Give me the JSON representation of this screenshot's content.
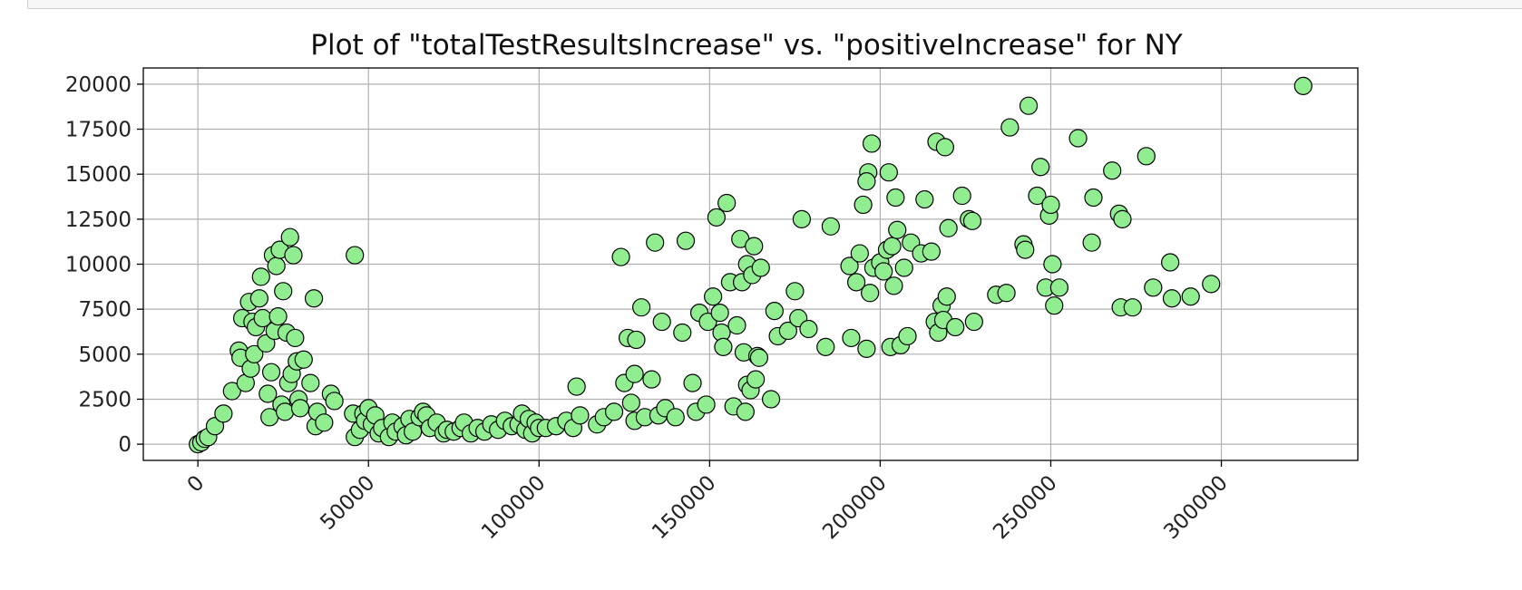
{
  "chart_data": {
    "type": "scatter",
    "title": "Plot of \"totalTestResultsIncrease\" vs. \"positiveIncrease\" for NY",
    "xlabel": "",
    "ylabel": "",
    "xlim": [
      -16000,
      340000
    ],
    "ylim": [
      -900,
      20900
    ],
    "xticks": [
      0,
      50000,
      100000,
      150000,
      200000,
      250000,
      300000
    ],
    "yticks": [
      0,
      2500,
      5000,
      7500,
      10000,
      12500,
      15000,
      17500,
      20000
    ],
    "grid": true,
    "marker_color": "#90ee90",
    "marker_edge_color": "#000000",
    "series": [
      {
        "points": [
          [
            0,
            0
          ],
          [
            1000,
            100
          ],
          [
            2000,
            300
          ],
          [
            3000,
            400
          ],
          [
            5000,
            1000
          ],
          [
            7500,
            1700
          ],
          [
            10000,
            2950
          ],
          [
            12000,
            5200
          ],
          [
            12500,
            4800
          ],
          [
            13000,
            7000
          ],
          [
            14000,
            3400
          ],
          [
            15000,
            7900
          ],
          [
            15500,
            4200
          ],
          [
            16000,
            6800
          ],
          [
            16500,
            5000
          ],
          [
            17000,
            6500
          ],
          [
            18000,
            8100
          ],
          [
            18500,
            9300
          ],
          [
            19000,
            7000
          ],
          [
            20000,
            5600
          ],
          [
            20500,
            2800
          ],
          [
            21000,
            1500
          ],
          [
            21500,
            4000
          ],
          [
            22000,
            10500
          ],
          [
            22500,
            6300
          ],
          [
            23000,
            9900
          ],
          [
            23500,
            7100
          ],
          [
            24000,
            10800
          ],
          [
            24500,
            2200
          ],
          [
            25000,
            8500
          ],
          [
            25500,
            1800
          ],
          [
            26000,
            6200
          ],
          [
            26500,
            3400
          ],
          [
            27000,
            11500
          ],
          [
            27500,
            3900
          ],
          [
            28000,
            10500
          ],
          [
            28500,
            5900
          ],
          [
            29000,
            4600
          ],
          [
            29500,
            2500
          ],
          [
            30000,
            2000
          ],
          [
            31000,
            4700
          ],
          [
            33000,
            3400
          ],
          [
            34000,
            8100
          ],
          [
            34500,
            1000
          ],
          [
            35000,
            1800
          ],
          [
            37000,
            1200
          ],
          [
            39000,
            2800
          ],
          [
            40000,
            2400
          ],
          [
            46000,
            10500
          ],
          [
            45500,
            1700
          ],
          [
            46000,
            400
          ],
          [
            47500,
            800
          ],
          [
            48500,
            1700
          ],
          [
            49000,
            1300
          ],
          [
            50000,
            2000
          ],
          [
            51000,
            1100
          ],
          [
            52000,
            1600
          ],
          [
            53000,
            600
          ],
          [
            54000,
            900
          ],
          [
            56000,
            400
          ],
          [
            57000,
            1200
          ],
          [
            58000,
            700
          ],
          [
            60000,
            1000
          ],
          [
            61000,
            500
          ],
          [
            62000,
            1400
          ],
          [
            63000,
            700
          ],
          [
            65000,
            1500
          ],
          [
            66000,
            1800
          ],
          [
            67000,
            1600
          ],
          [
            68000,
            900
          ],
          [
            70000,
            1200
          ],
          [
            72000,
            600
          ],
          [
            73000,
            800
          ],
          [
            75000,
            700
          ],
          [
            77000,
            900
          ],
          [
            78000,
            1200
          ],
          [
            80000,
            600
          ],
          [
            82000,
            900
          ],
          [
            84000,
            700
          ],
          [
            86000,
            1100
          ],
          [
            88000,
            800
          ],
          [
            90000,
            1300
          ],
          [
            92000,
            1000
          ],
          [
            94000,
            1100
          ],
          [
            95000,
            1700
          ],
          [
            96000,
            800
          ],
          [
            97000,
            1400
          ],
          [
            98000,
            600
          ],
          [
            99000,
            1200
          ],
          [
            100000,
            900
          ],
          [
            102000,
            900
          ],
          [
            105000,
            1000
          ],
          [
            108000,
            1300
          ],
          [
            110000,
            900
          ],
          [
            111000,
            3200
          ],
          [
            112000,
            1600
          ],
          [
            117000,
            1100
          ],
          [
            119000,
            1500
          ],
          [
            122000,
            1800
          ],
          [
            125000,
            3400
          ],
          [
            124000,
            10400
          ],
          [
            126000,
            5900
          ],
          [
            127000,
            2300
          ],
          [
            128000,
            3900
          ],
          [
            128500,
            5800
          ],
          [
            128000,
            1300
          ],
          [
            130000,
            7600
          ],
          [
            131000,
            1500
          ],
          [
            133000,
            3600
          ],
          [
            134000,
            11200
          ],
          [
            135000,
            1600
          ],
          [
            136000,
            6800
          ],
          [
            137000,
            2000
          ],
          [
            140000,
            1500
          ],
          [
            142000,
            6200
          ],
          [
            143000,
            11300
          ],
          [
            145000,
            3400
          ],
          [
            146000,
            1800
          ],
          [
            147000,
            7300
          ],
          [
            149000,
            2200
          ],
          [
            149500,
            6800
          ],
          [
            151000,
            8200
          ],
          [
            152000,
            12600
          ],
          [
            153000,
            7300
          ],
          [
            153500,
            6200
          ],
          [
            154000,
            5400
          ],
          [
            155000,
            13400
          ],
          [
            156000,
            9000
          ],
          [
            157000,
            2100
          ],
          [
            158000,
            6600
          ],
          [
            159000,
            11400
          ],
          [
            159500,
            9000
          ],
          [
            160000,
            5100
          ],
          [
            160500,
            1800
          ],
          [
            161000,
            3300
          ],
          [
            161000,
            10000
          ],
          [
            162000,
            3000
          ],
          [
            162500,
            9400
          ],
          [
            163000,
            11000
          ],
          [
            163500,
            3600
          ],
          [
            164000,
            4900
          ],
          [
            164500,
            4800
          ],
          [
            165000,
            9800
          ],
          [
            168000,
            2500
          ],
          [
            169000,
            7400
          ],
          [
            170000,
            6000
          ],
          [
            173000,
            6300
          ],
          [
            175000,
            8500
          ],
          [
            176000,
            7000
          ],
          [
            177000,
            12500
          ],
          [
            179000,
            6400
          ],
          [
            184000,
            5400
          ],
          [
            185500,
            12100
          ],
          [
            191000,
            9900
          ],
          [
            191500,
            5900
          ],
          [
            193000,
            9000
          ],
          [
            194000,
            10600
          ],
          [
            195000,
            13300
          ],
          [
            196000,
            5300
          ],
          [
            196500,
            15100
          ],
          [
            196000,
            14600
          ],
          [
            197000,
            8400
          ],
          [
            197500,
            16700
          ],
          [
            198000,
            9800
          ],
          [
            200000,
            10100
          ],
          [
            201000,
            9600
          ],
          [
            202000,
            10800
          ],
          [
            202500,
            15100
          ],
          [
            203000,
            5400
          ],
          [
            203500,
            11000
          ],
          [
            204000,
            8800
          ],
          [
            204500,
            13700
          ],
          [
            205000,
            11900
          ],
          [
            206000,
            5500
          ],
          [
            207000,
            9800
          ],
          [
            208000,
            6000
          ],
          [
            209000,
            11200
          ],
          [
            212000,
            10600
          ],
          [
            213000,
            13600
          ],
          [
            215000,
            10700
          ],
          [
            216000,
            6800
          ],
          [
            216500,
            16800
          ],
          [
            217000,
            6200
          ],
          [
            218000,
            7700
          ],
          [
            218500,
            6900
          ],
          [
            219000,
            16500
          ],
          [
            219500,
            8200
          ],
          [
            220000,
            12000
          ],
          [
            222000,
            6500
          ],
          [
            224000,
            13800
          ],
          [
            226000,
            12500
          ],
          [
            227000,
            12400
          ],
          [
            227500,
            6800
          ],
          [
            234000,
            8300
          ],
          [
            237000,
            8400
          ],
          [
            238000,
            17600
          ],
          [
            242000,
            11100
          ],
          [
            242500,
            10800
          ],
          [
            243500,
            18800
          ],
          [
            246000,
            13800
          ],
          [
            247000,
            15400
          ],
          [
            248500,
            8700
          ],
          [
            249500,
            12700
          ],
          [
            250000,
            13300
          ],
          [
            250500,
            10000
          ],
          [
            251000,
            7700
          ],
          [
            252500,
            8700
          ],
          [
            258000,
            17000
          ],
          [
            262000,
            11200
          ],
          [
            262500,
            13700
          ],
          [
            268000,
            15200
          ],
          [
            270000,
            12800
          ],
          [
            270500,
            7600
          ],
          [
            271000,
            12500
          ],
          [
            274000,
            7600
          ],
          [
            278000,
            16000
          ],
          [
            280000,
            8700
          ],
          [
            285000,
            10100
          ],
          [
            285500,
            8100
          ],
          [
            291000,
            8200
          ],
          [
            297000,
            8900
          ],
          [
            324000,
            19900
          ]
        ]
      }
    ]
  }
}
